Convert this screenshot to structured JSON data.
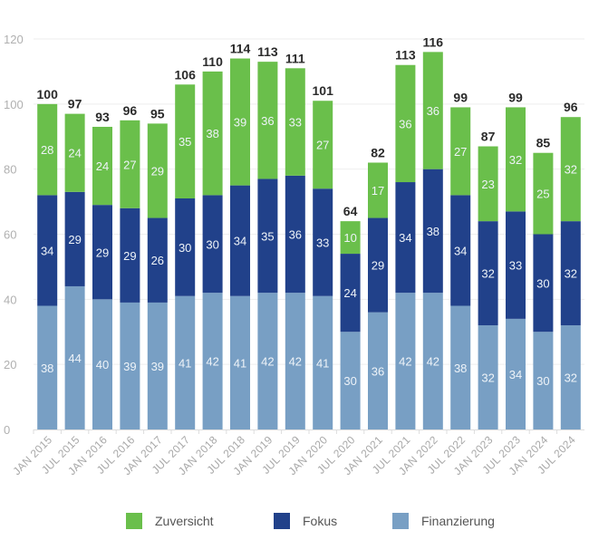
{
  "chart_data": {
    "type": "bar",
    "stacked": true,
    "title": "",
    "xlabel": "",
    "ylabel": "",
    "ylim": [
      0,
      120
    ],
    "yticks": [
      0,
      20,
      40,
      60,
      80,
      100,
      120
    ],
    "grid": true,
    "legend_position": "bottom",
    "categories": [
      "JAN 2015",
      "JUL 2015",
      "JAN 2016",
      "JUL 2016",
      "JAN 2017",
      "JUL 2017",
      "JAN 2018",
      "JUL 2018",
      "JAN 2019",
      "JUL 2019",
      "JAN 2020",
      "JUL 2020",
      "JAN 2021",
      "JUL 2021",
      "JAN 2022",
      "JUL 2022",
      "JAN 2023",
      "JUL 2023",
      "JAN 2024",
      "JUL 2024"
    ],
    "series": [
      {
        "name": "Finanzierung",
        "color": "#789fc4",
        "values": [
          38,
          44,
          40,
          39,
          39,
          41,
          42,
          41,
          42,
          42,
          41,
          30,
          36,
          42,
          42,
          38,
          32,
          34,
          30,
          32
        ]
      },
      {
        "name": "Fokus",
        "color": "#21418a",
        "values": [
          34,
          29,
          29,
          29,
          26,
          30,
          30,
          34,
          35,
          36,
          33,
          24,
          29,
          34,
          38,
          34,
          32,
          33,
          30,
          32
        ]
      },
      {
        "name": "Zuversicht",
        "color": "#6abf4b",
        "values": [
          28,
          24,
          24,
          27,
          29,
          35,
          38,
          39,
          36,
          33,
          27,
          10,
          17,
          36,
          36,
          27,
          23,
          32,
          25,
          32
        ]
      }
    ],
    "totals": [
      100,
      97,
      93,
      96,
      95,
      106,
      110,
      114,
      113,
      111,
      101,
      64,
      82,
      113,
      116,
      99,
      87,
      99,
      85,
      96
    ],
    "legend": [
      "Zuversicht",
      "Fokus",
      "Finanzierung"
    ]
  },
  "legend": [
    {
      "label": "Zuversicht",
      "color": "#6abf4b"
    },
    {
      "label": "Fokus",
      "color": "#21418a"
    },
    {
      "label": "Finanzierung",
      "color": "#789fc4"
    }
  ]
}
